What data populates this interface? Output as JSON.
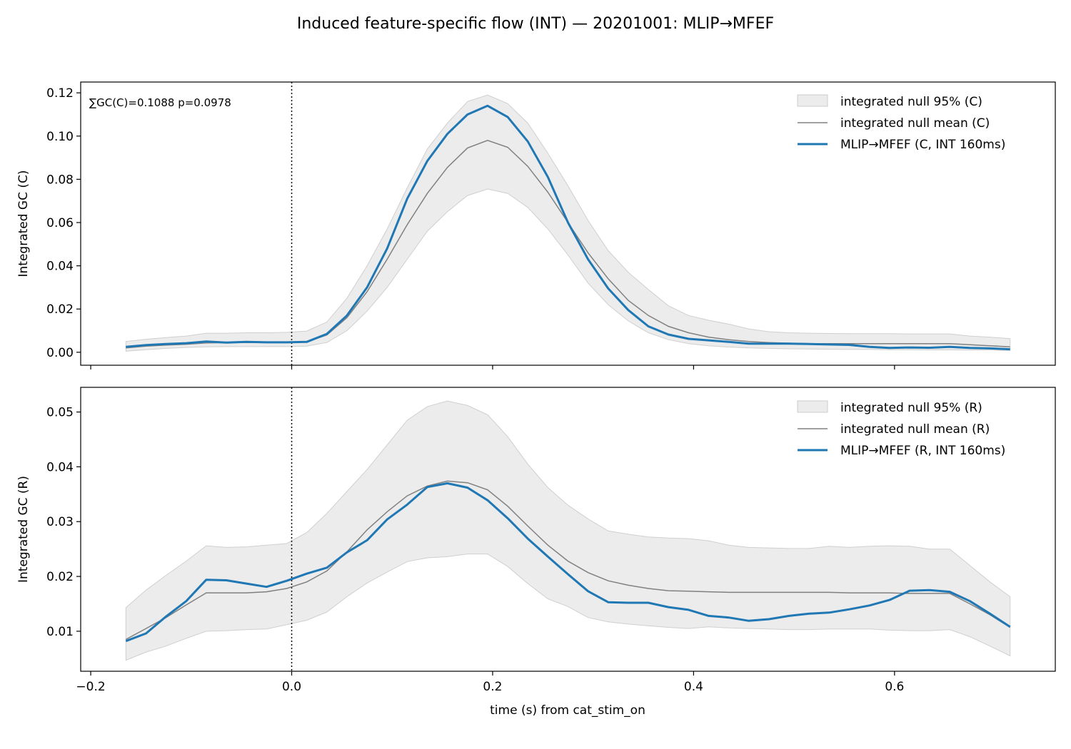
{
  "figure": {
    "title": "Induced feature-specific flow (INT) — 20201001: MLIP→MFEF",
    "xlabel": "time (s) from cat_stim_on"
  },
  "colors": {
    "series": "#1f77b4",
    "null_mean": "#808080",
    "null_band": "#dcdcdc"
  },
  "chart_data": [
    {
      "type": "line",
      "ylabel": "Integrated GC (C)",
      "annotation": "∑GC(C)=0.1088  p=0.0978",
      "xlim": [
        -0.21,
        0.76
      ],
      "ylim": [
        -0.006,
        0.125
      ],
      "xticks": [
        -0.2,
        0.0,
        0.2,
        0.4,
        0.6
      ],
      "xtick_labels": [
        "−0.2",
        "0.0",
        "0.2",
        "0.4",
        "0.6"
      ],
      "yticks": [
        0.0,
        0.02,
        0.04,
        0.06,
        0.08,
        0.1,
        0.12
      ],
      "ytick_labels": [
        "0.00",
        "0.02",
        "0.04",
        "0.06",
        "0.08",
        "0.10",
        "0.12"
      ],
      "vline_x": 0.0,
      "legend_position": "top-right",
      "legend": [
        "integrated null 95% (C)",
        "integrated null mean (C)",
        "MLIP→MFEF (C, INT 160ms)"
      ],
      "x": [
        -0.165,
        -0.145,
        -0.125,
        -0.105,
        -0.085,
        -0.065,
        -0.045,
        -0.025,
        -0.005,
        0.015,
        0.035,
        0.055,
        0.075,
        0.095,
        0.115,
        0.135,
        0.155,
        0.175,
        0.195,
        0.215,
        0.235,
        0.255,
        0.275,
        0.295,
        0.315,
        0.335,
        0.355,
        0.375,
        0.395,
        0.415,
        0.435,
        0.455,
        0.475,
        0.495,
        0.515,
        0.535,
        0.555,
        0.575,
        0.595,
        0.615,
        0.635,
        0.655,
        0.675,
        0.695,
        0.715
      ],
      "series": [
        {
          "name": "MLIP→MFEF (C, INT 160ms)",
          "values": [
            0.0025,
            0.0033,
            0.0038,
            0.0042,
            0.005,
            0.0045,
            0.0048,
            0.0046,
            0.0046,
            0.0048,
            0.0085,
            0.017,
            0.03,
            0.048,
            0.071,
            0.0885,
            0.101,
            0.11,
            0.114,
            0.1088,
            0.0975,
            0.081,
            0.06,
            0.043,
            0.0295,
            0.0195,
            0.012,
            0.0082,
            0.0062,
            0.0055,
            0.0048,
            0.004,
            0.004,
            0.004,
            0.0038,
            0.0036,
            0.0034,
            0.0025,
            0.002,
            0.0022,
            0.0021,
            0.0025,
            0.002,
            0.0018,
            0.0014
          ]
        },
        {
          "name": "integrated null mean (C)",
          "values": [
            0.002,
            0.0028,
            0.0033,
            0.0037,
            0.0043,
            0.0045,
            0.0045,
            0.0045,
            0.0045,
            0.0048,
            0.008,
            0.016,
            0.028,
            0.043,
            0.059,
            0.0735,
            0.0855,
            0.0945,
            0.098,
            0.0948,
            0.086,
            0.074,
            0.06,
            0.046,
            0.034,
            0.024,
            0.017,
            0.012,
            0.009,
            0.007,
            0.0058,
            0.005,
            0.0045,
            0.0042,
            0.004,
            0.004,
            0.004,
            0.004,
            0.004,
            0.004,
            0.004,
            0.004,
            0.0035,
            0.003,
            0.0025
          ]
        },
        {
          "name": "integrated null 95% (C) upper",
          "values": [
            0.005,
            0.006,
            0.0068,
            0.0075,
            0.0088,
            0.0088,
            0.009,
            0.009,
            0.0092,
            0.0098,
            0.014,
            0.025,
            0.04,
            0.057,
            0.076,
            0.094,
            0.106,
            0.116,
            0.119,
            0.115,
            0.106,
            0.092,
            0.077,
            0.061,
            0.047,
            0.037,
            0.029,
            0.0215,
            0.017,
            0.0148,
            0.013,
            0.0108,
            0.0095,
            0.009,
            0.0088,
            0.0087,
            0.0086,
            0.0086,
            0.0086,
            0.0085,
            0.0085,
            0.0085,
            0.0075,
            0.007,
            0.0063
          ]
        },
        {
          "name": "integrated null 95% (C) lower",
          "values": [
            0.0005,
            0.0012,
            0.0018,
            0.0022,
            0.0025,
            0.0026,
            0.0026,
            0.0026,
            0.0026,
            0.0028,
            0.0045,
            0.01,
            0.019,
            0.03,
            0.043,
            0.056,
            0.065,
            0.0725,
            0.0755,
            0.0735,
            0.067,
            0.057,
            0.045,
            0.032,
            0.022,
            0.0145,
            0.009,
            0.0058,
            0.004,
            0.003,
            0.0024,
            0.002,
            0.0018,
            0.0016,
            0.0015,
            0.0014,
            0.0013,
            0.0013,
            0.0012,
            0.0012,
            0.0011,
            0.0011,
            0.001,
            0.001,
            0.0008
          ]
        }
      ]
    },
    {
      "type": "line",
      "ylabel": "Integrated GC (R)",
      "xlim": [
        -0.21,
        0.76
      ],
      "ylim": [
        0.0027,
        0.0545
      ],
      "xticks": [
        -0.2,
        0.0,
        0.2,
        0.4,
        0.6
      ],
      "xtick_labels": [
        "−0.2",
        "0.0",
        "0.2",
        "0.4",
        "0.6"
      ],
      "yticks": [
        0.01,
        0.02,
        0.03,
        0.04,
        0.05
      ],
      "ytick_labels": [
        "0.01",
        "0.02",
        "0.03",
        "0.04",
        "0.05"
      ],
      "vline_x": 0.0,
      "legend_position": "top-right",
      "legend": [
        "integrated null 95% (R)",
        "integrated null mean (R)",
        "MLIP→MFEF (R, INT 160ms)"
      ],
      "x": [
        -0.165,
        -0.145,
        -0.125,
        -0.105,
        -0.085,
        -0.065,
        -0.045,
        -0.025,
        -0.005,
        0.015,
        0.035,
        0.055,
        0.075,
        0.095,
        0.115,
        0.135,
        0.155,
        0.175,
        0.195,
        0.215,
        0.235,
        0.255,
        0.275,
        0.295,
        0.315,
        0.335,
        0.355,
        0.375,
        0.395,
        0.415,
        0.435,
        0.455,
        0.475,
        0.495,
        0.515,
        0.535,
        0.555,
        0.575,
        0.595,
        0.615,
        0.635,
        0.655,
        0.675,
        0.695,
        0.715
      ],
      "series": [
        {
          "name": "MLIP→MFEF (R, INT 160ms)",
          "values": [
            0.0082,
            0.0096,
            0.0127,
            0.0155,
            0.0194,
            0.0193,
            0.0187,
            0.0181,
            0.0192,
            0.0205,
            0.0216,
            0.0244,
            0.0266,
            0.0304,
            0.0331,
            0.0363,
            0.037,
            0.0362,
            0.0339,
            0.0306,
            0.0269,
            0.0236,
            0.0204,
            0.0173,
            0.0153,
            0.0152,
            0.0152,
            0.0144,
            0.0139,
            0.0128,
            0.0125,
            0.0119,
            0.0122,
            0.0128,
            0.0132,
            0.0134,
            0.014,
            0.0147,
            0.0157,
            0.0174,
            0.0175,
            0.0172,
            0.0155,
            0.0132,
            0.0108
          ]
        },
        {
          "name": "integrated null mean (R)",
          "values": [
            0.0085,
            0.0105,
            0.0125,
            0.0148,
            0.017,
            0.017,
            0.017,
            0.0172,
            0.0178,
            0.019,
            0.021,
            0.0245,
            0.0285,
            0.0318,
            0.0347,
            0.0365,
            0.0374,
            0.0371,
            0.0358,
            0.0328,
            0.0292,
            0.0257,
            0.0228,
            0.0207,
            0.0192,
            0.0184,
            0.0178,
            0.0174,
            0.0173,
            0.0172,
            0.0171,
            0.0171,
            0.0171,
            0.0171,
            0.0171,
            0.0171,
            0.017,
            0.017,
            0.017,
            0.0169,
            0.0169,
            0.0169,
            0.015,
            0.013,
            0.0107
          ]
        },
        {
          "name": "integrated null 95% (R) upper",
          "values": [
            0.0143,
            0.0175,
            0.0202,
            0.0228,
            0.0256,
            0.0253,
            0.0254,
            0.0257,
            0.026,
            0.028,
            0.0315,
            0.0355,
            0.0395,
            0.044,
            0.0485,
            0.051,
            0.052,
            0.0512,
            0.0495,
            0.0455,
            0.0405,
            0.0362,
            0.033,
            0.0305,
            0.0283,
            0.0277,
            0.0272,
            0.027,
            0.0269,
            0.0265,
            0.0257,
            0.0253,
            0.0252,
            0.0251,
            0.0251,
            0.0255,
            0.0253,
            0.0255,
            0.0256,
            0.0255,
            0.025,
            0.025,
            0.022,
            0.019,
            0.0163
          ]
        },
        {
          "name": "integrated null 95% (R) lower",
          "values": [
            0.0047,
            0.0062,
            0.0073,
            0.0087,
            0.01,
            0.0101,
            0.0103,
            0.0104,
            0.0112,
            0.012,
            0.0135,
            0.0163,
            0.0188,
            0.0208,
            0.0227,
            0.0234,
            0.0236,
            0.0241,
            0.0241,
            0.0218,
            0.0187,
            0.0159,
            0.0145,
            0.0125,
            0.0117,
            0.0113,
            0.011,
            0.0107,
            0.0105,
            0.0108,
            0.0106,
            0.0105,
            0.0104,
            0.0103,
            0.0103,
            0.0104,
            0.0104,
            0.0104,
            0.0102,
            0.0101,
            0.0101,
            0.0103,
            0.009,
            0.0073,
            0.0055
          ]
        }
      ]
    }
  ]
}
